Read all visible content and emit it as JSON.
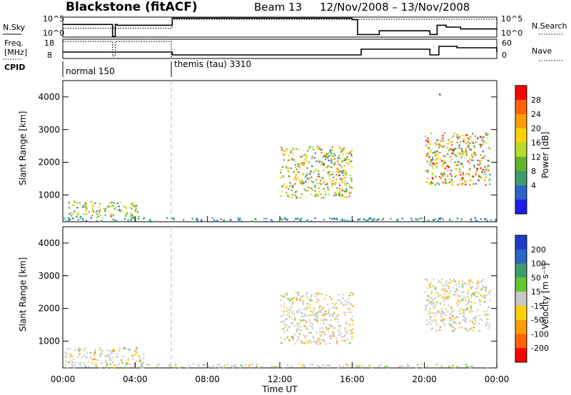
{
  "header": {
    "station_title": "Blackstone (fitACF)",
    "beam_label": "Beam 13",
    "date_range": "12/Nov/2008 – 13/Nov/2008"
  },
  "summary_panels": {
    "nsky_label": "N.Sky",
    "nsearch_label": "N.Search",
    "nsky_ticks": [
      "10^5",
      "10^0"
    ],
    "nsearch_ticks": [
      "10^5",
      "10^0"
    ],
    "freq_label": "Freq.",
    "freq_unit": "[MHz]",
    "freq_ticks": [
      "18",
      "8"
    ],
    "nave_label": "Nave",
    "nave_ticks": [
      "60",
      "0"
    ],
    "cpid_label": "CPID",
    "cpid_segments": [
      "normal 150",
      "themis (tau) 3310"
    ]
  },
  "x_axis": {
    "label": "Time UT",
    "ticks": [
      "00:00",
      "04:00",
      "08:00",
      "12:00",
      "16:00",
      "20:00",
      "00:00"
    ],
    "range_hours": [
      0,
      24
    ]
  },
  "power_colorbar": {
    "label": "Power [dB]",
    "ticks": [
      "28",
      "24",
      "20",
      "16",
      "12",
      "8",
      "4"
    ],
    "colors": [
      "#ff0000",
      "#ff6400",
      "#ff9d00",
      "#ffd200",
      "#b4dc28",
      "#64b432",
      "#3c9c6e",
      "#2c64c8",
      "#1e1ee6"
    ]
  },
  "velocity_colorbar": {
    "label": "Velocity [m s⁻¹]",
    "ticks": [
      "200",
      "100",
      "50",
      "15",
      "-15",
      "-50",
      "-100",
      "-200"
    ],
    "colors": [
      "#1e3cc8",
      "#2c64c8",
      "#3c9c6e",
      "#64c832",
      "#c8c8c8",
      "#ffd200",
      "#ff9d00",
      "#ff6400",
      "#ff0000"
    ]
  },
  "chart_data": [
    {
      "type": "line",
      "panel": "nsky-nsearch",
      "series": [
        {
          "name": "N.Sky",
          "style": "solid",
          "x": [
            0,
            2.7,
            2.75,
            2.9,
            3.0,
            6.0,
            6.05,
            12,
            16.0,
            16.3,
            17.5,
            20.3,
            20.7,
            21.2,
            22.0,
            24
          ],
          "y": [
            3.2,
            3.2,
            0,
            3.2,
            3.0,
            3.0,
            4.9,
            4.9,
            4.5,
            0.5,
            1.5,
            0.5,
            3.0,
            2.5,
            2.0,
            1.8
          ]
        },
        {
          "name": "N.Search",
          "style": "dotted",
          "x": [
            0,
            6.0,
            6.05,
            24
          ],
          "y": [
            2.2,
            2.2,
            4.6,
            4.6
          ]
        }
      ],
      "ylim": [
        0,
        5
      ]
    },
    {
      "type": "line",
      "panel": "freq-nave",
      "series": [
        {
          "name": "Freq",
          "style": "dotted",
          "x": [
            0,
            2.6,
            2.75,
            2.9,
            6.0,
            6.0
          ],
          "y": [
            17.5,
            17.5,
            9,
            17.5,
            17.5,
            8
          ]
        },
        {
          "name": "Nave",
          "style": "solid",
          "x": [
            0,
            6.0,
            6.05,
            16.0,
            16.5,
            20.3,
            20.8,
            21.8,
            24
          ],
          "y": [
            20,
            20,
            10,
            10,
            30,
            10,
            40,
            35,
            20
          ]
        }
      ],
      "ylim_freq": [
        8,
        18
      ],
      "ylim_nave": [
        0,
        60
      ]
    },
    {
      "type": "heatmap",
      "panel": "power",
      "title": "",
      "xlabel": "Time UT",
      "ylabel": "Slant Range [km]",
      "xlim": [
        0,
        24
      ],
      "ylim": [
        180,
        4500
      ],
      "yticks": [
        1000,
        2000,
        3000,
        4000
      ],
      "scatter_regions": [
        {
          "t": [
            0.3,
            4.2
          ],
          "r": [
            300,
            800
          ],
          "power_dB": [
            4,
            20
          ]
        },
        {
          "t": [
            0.0,
            24.0
          ],
          "r": [
            180,
            300
          ],
          "power_dB": [
            4,
            8
          ]
        },
        {
          "t": [
            12.0,
            16.0
          ],
          "r": [
            900,
            2500
          ],
          "power_dB": [
            4,
            24
          ]
        },
        {
          "t": [
            20.0,
            23.6
          ],
          "r": [
            1300,
            2900
          ],
          "power_dB": [
            4,
            28
          ]
        },
        {
          "t": [
            20.8,
            20.9
          ],
          "r": [
            4050,
            4100
          ],
          "power_dB": [
            4,
            8
          ]
        }
      ]
    },
    {
      "type": "heatmap",
      "panel": "velocity",
      "title": "",
      "xlabel": "Time UT",
      "ylabel": "Slant Range [km]",
      "xlim": [
        0,
        24
      ],
      "ylim": [
        180,
        4500
      ],
      "yticks": [
        1000,
        2000,
        3000,
        4000
      ],
      "scatter_regions": [
        {
          "t": [
            0.0,
            4.5
          ],
          "r": [
            300,
            800
          ],
          "velocity": [
            -50,
            50
          ]
        },
        {
          "t": [
            0.0,
            24.0
          ],
          "r": [
            180,
            300
          ],
          "velocity": [
            -50,
            50
          ]
        },
        {
          "t": [
            12.0,
            16.0
          ],
          "r": [
            900,
            2500
          ],
          "velocity": [
            -50,
            15
          ]
        },
        {
          "t": [
            20.0,
            23.6
          ],
          "r": [
            1300,
            2900
          ],
          "velocity": [
            -50,
            15
          ]
        }
      ]
    }
  ]
}
